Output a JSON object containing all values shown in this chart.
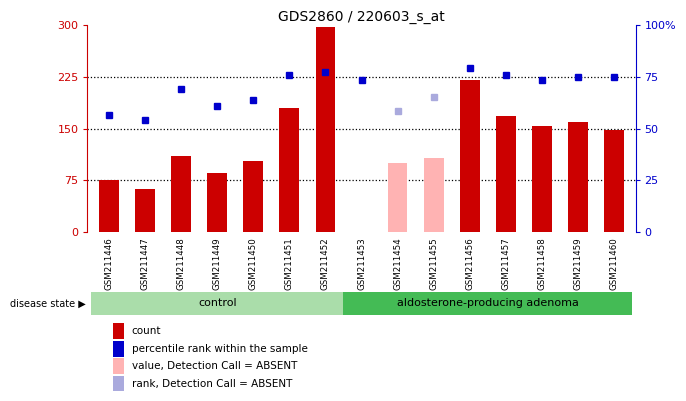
{
  "title": "GDS2860 / 220603_s_at",
  "samples": [
    "GSM211446",
    "GSM211447",
    "GSM211448",
    "GSM211449",
    "GSM211450",
    "GSM211451",
    "GSM211452",
    "GSM211453",
    "GSM211454",
    "GSM211455",
    "GSM211456",
    "GSM211457",
    "GSM211458",
    "GSM211459",
    "GSM211460"
  ],
  "bar_values": [
    75,
    63,
    110,
    85,
    103,
    180,
    297,
    null,
    null,
    null,
    220,
    168,
    153,
    160,
    148
  ],
  "bar_absent_values": [
    null,
    null,
    null,
    null,
    null,
    null,
    null,
    null,
    100,
    107,
    null,
    null,
    null,
    null,
    null
  ],
  "dot_values": [
    170,
    162,
    207,
    182,
    192,
    228,
    232,
    220,
    null,
    null,
    237,
    228,
    220,
    225,
    225
  ],
  "dot_absent_values": [
    null,
    null,
    null,
    null,
    null,
    null,
    null,
    null,
    175,
    195,
    null,
    null,
    null,
    null,
    null
  ],
  "bar_color": "#cc0000",
  "bar_absent_color": "#ffb3b3",
  "dot_color": "#0000cc",
  "dot_absent_color": "#aaaadd",
  "ylim_left": [
    0,
    300
  ],
  "ylim_right": [
    0,
    100
  ],
  "yticks_left": [
    0,
    75,
    150,
    225,
    300
  ],
  "ytick_labels_left": [
    "0",
    "75",
    "150",
    "225",
    "300"
  ],
  "yticks_right": [
    0,
    25,
    50,
    75,
    100
  ],
  "ytick_labels_right": [
    "0",
    "25",
    "50",
    "75",
    "100%"
  ],
  "hlines": [
    75,
    150,
    225
  ],
  "n_control": 7,
  "n_adenoma": 8,
  "control_label": "control",
  "adenoma_label": "aldosterone-producing adenoma",
  "disease_state_label": "disease state",
  "legend_items": [
    {
      "label": "count",
      "color": "#cc0000"
    },
    {
      "label": "percentile rank within the sample",
      "color": "#0000cc"
    },
    {
      "label": "value, Detection Call = ABSENT",
      "color": "#ffb3b3"
    },
    {
      "label": "rank, Detection Call = ABSENT",
      "color": "#aaaadd"
    }
  ],
  "bg_color": "#ffffff",
  "plot_bg_color": "#ffffff",
  "label_area_color": "#d3d3d3",
  "control_bg_color": "#aaddaa",
  "adenoma_bg_color": "#44bb55",
  "bar_width": 0.55
}
